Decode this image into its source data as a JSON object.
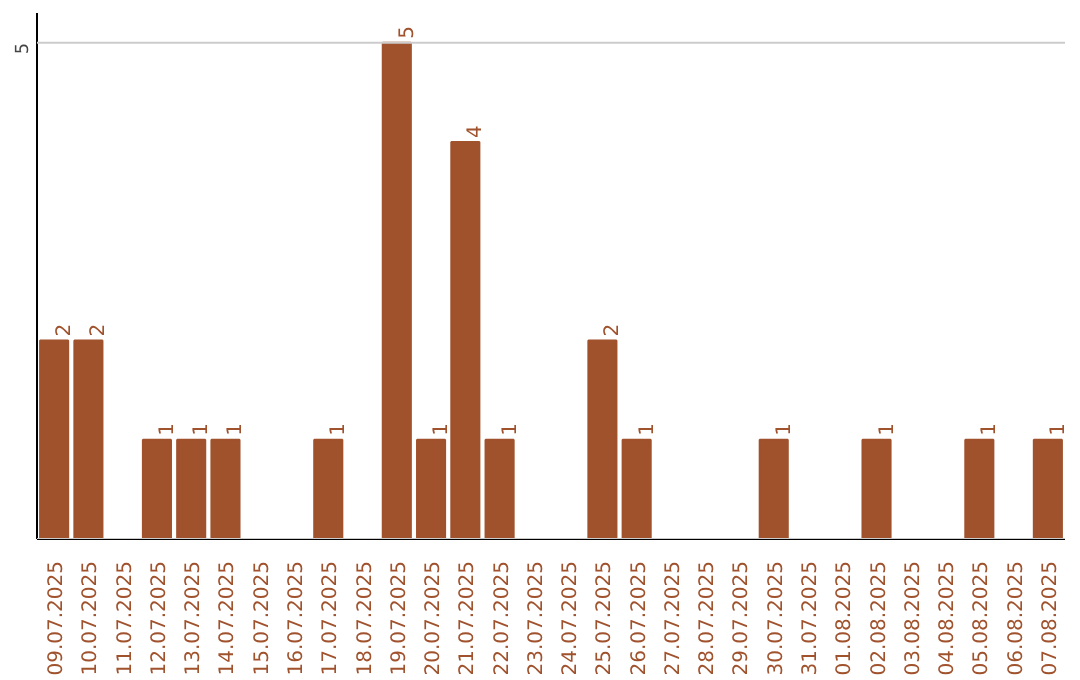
{
  "chart_data": {
    "type": "bar",
    "categories": [
      "09.07.2025",
      "10.07.2025",
      "11.07.2025",
      "12.07.2025",
      "13.07.2025",
      "14.07.2025",
      "15.07.2025",
      "16.07.2025",
      "17.07.2025",
      "18.07.2025",
      "19.07.2025",
      "20.07.2025",
      "21.07.2025",
      "22.07.2025",
      "23.07.2025",
      "24.07.2025",
      "25.07.2025",
      "26.07.2025",
      "27.07.2025",
      "28.07.2025",
      "29.07.2025",
      "30.07.2025",
      "31.07.2025",
      "01.08.2025",
      "02.08.2025",
      "03.08.2025",
      "04.08.2025",
      "05.08.2025",
      "06.08.2025",
      "07.08.2025"
    ],
    "values": [
      2,
      2,
      0,
      1,
      1,
      1,
      0,
      0,
      1,
      0,
      5,
      1,
      4,
      1,
      0,
      0,
      2,
      1,
      0,
      0,
      0,
      1,
      0,
      0,
      1,
      0,
      0,
      1,
      0,
      1
    ],
    "value_labels": [
      "2",
      "2",
      null,
      "1",
      "1",
      "1",
      null,
      null,
      "1",
      null,
      "5",
      "1",
      "4",
      "1",
      null,
      null,
      "2",
      "1",
      null,
      null,
      null,
      "1",
      null,
      null,
      "1",
      null,
      null,
      "1",
      null,
      "1"
    ],
    "color": "#a0522d",
    "ylim": [
      0,
      5.3
    ],
    "yticks": [
      {
        "value": 0,
        "label": null
      },
      5
    ],
    "grid": "y"
  }
}
